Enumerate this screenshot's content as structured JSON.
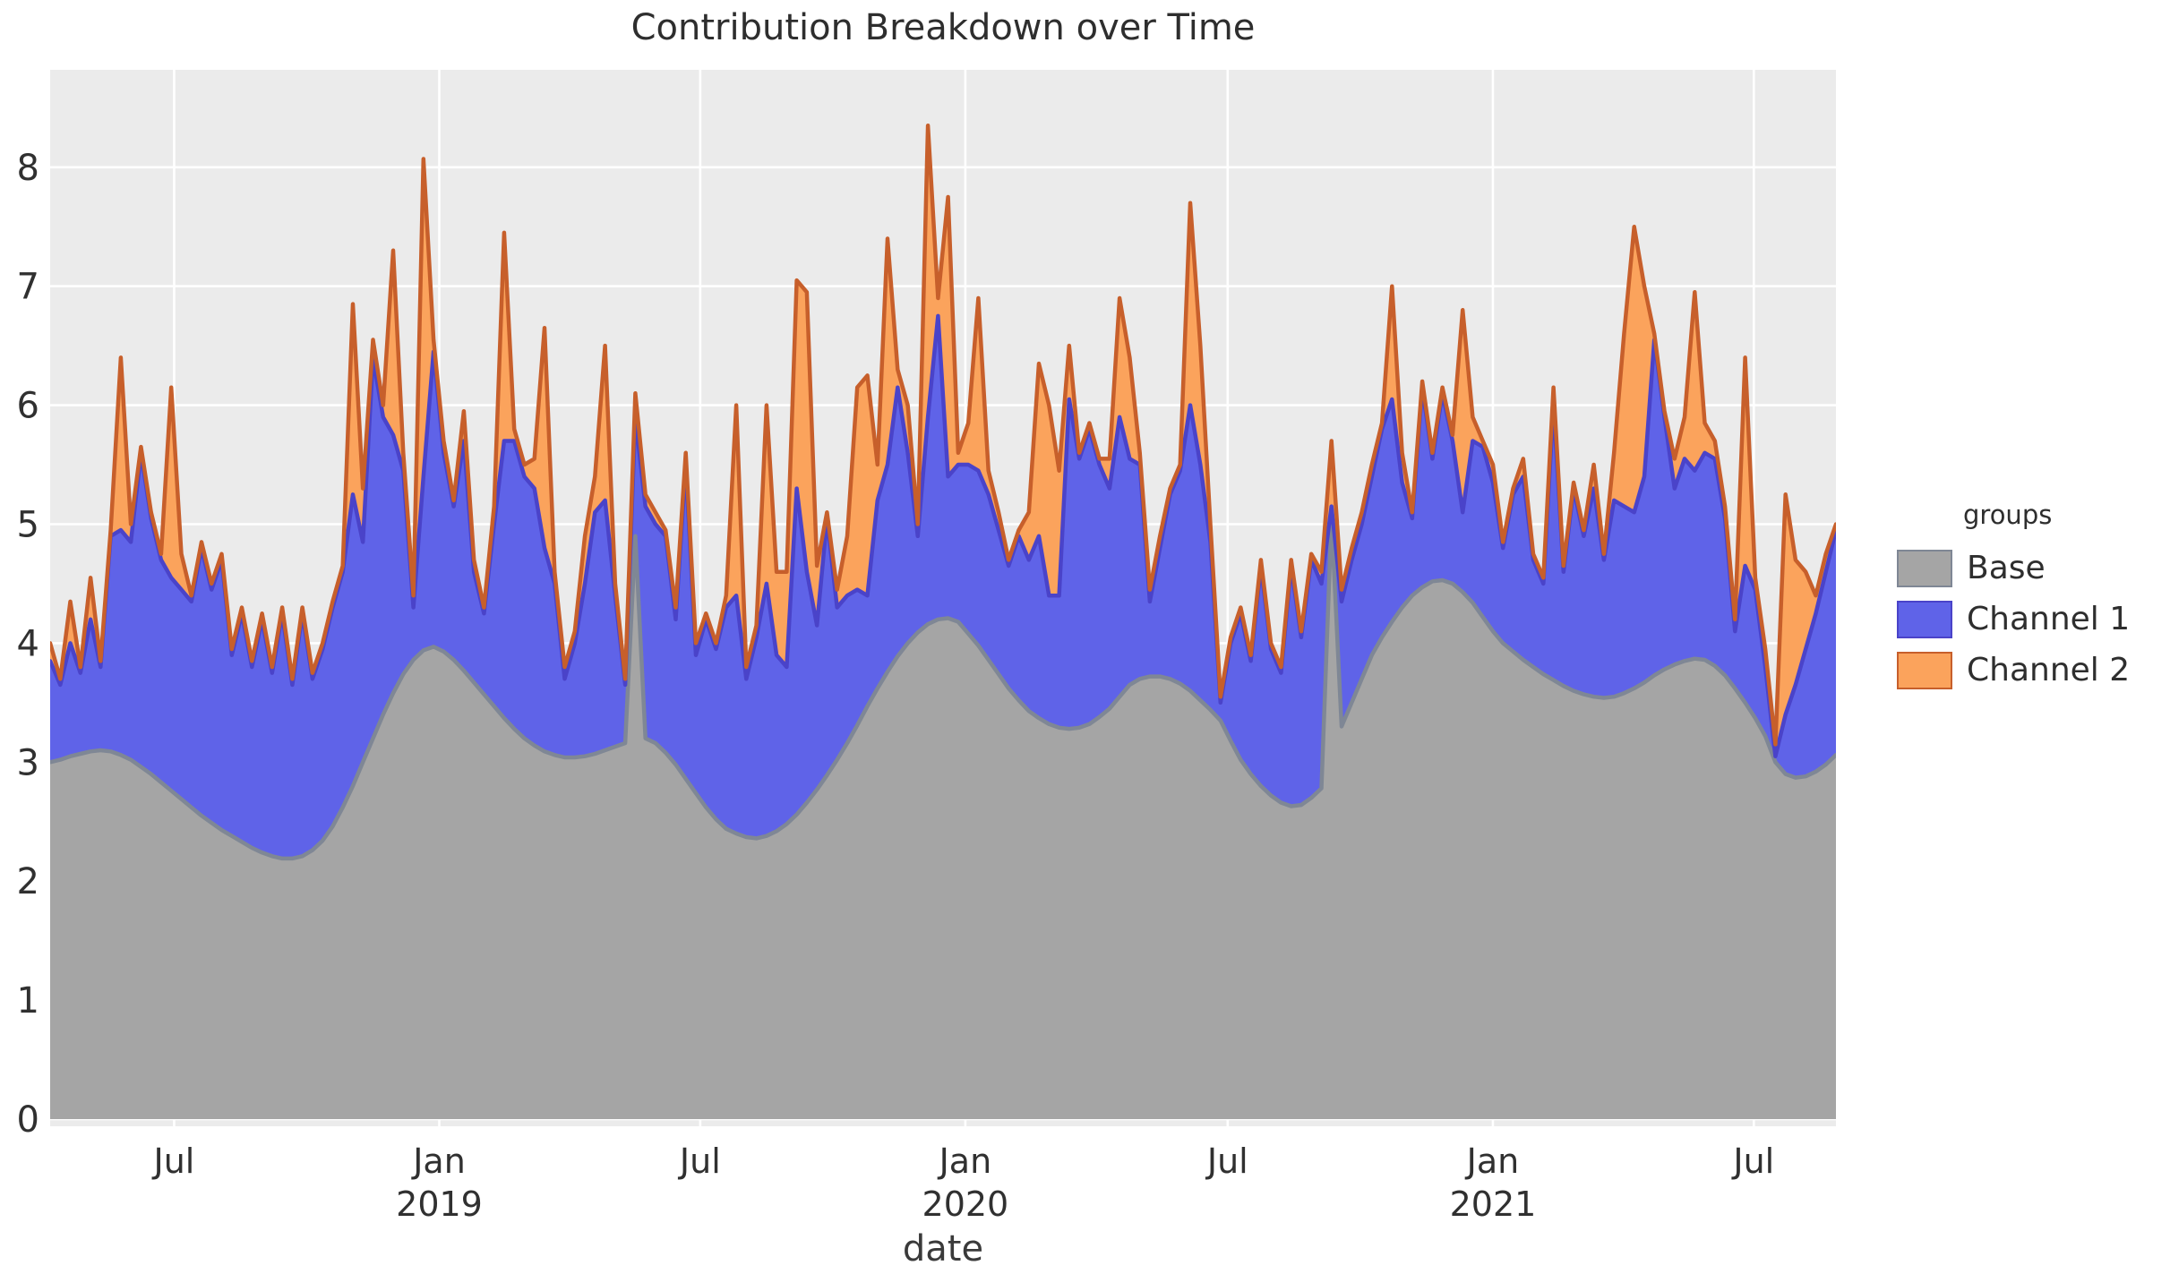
{
  "page": {
    "title": "Contribution Breakdown over Time"
  },
  "axes": {
    "x_title": "date",
    "y_ticks": [
      0,
      1,
      2,
      3,
      4,
      5,
      6,
      7,
      8
    ],
    "x_ticks": [
      {
        "label": "Jul",
        "year": "",
        "week": 12.29
      },
      {
        "label": "Jan",
        "year": "2019",
        "week": 38.57
      },
      {
        "label": "Jul",
        "year": "",
        "week": 64.43
      },
      {
        "label": "Jan",
        "year": "2020",
        "week": 90.71
      },
      {
        "label": "Jul",
        "year": "",
        "week": 116.71
      },
      {
        "label": "Jan",
        "year": "2021",
        "week": 143.0
      },
      {
        "label": "Jul",
        "year": "",
        "week": 168.86
      }
    ]
  },
  "legend": {
    "title": "groups",
    "items": [
      {
        "label": "Base",
        "fill": "#a5a5a5",
        "stroke": "#7f8795"
      },
      {
        "label": "Channel 1",
        "fill": "#5f63e8",
        "stroke": "#4a43c9"
      },
      {
        "label": "Channel 2",
        "fill": "#fba35c",
        "stroke": "#c75f2b"
      }
    ]
  },
  "colors": {
    "panel_background": "#ebebeb",
    "grid": "#ffffff",
    "text": "#303030"
  },
  "chart_data": {
    "type": "area",
    "stacked": true,
    "title": "Contribution Breakdown over Time",
    "xlabel": "date",
    "ylabel": "",
    "ylim": [
      0,
      8.9
    ],
    "x_start_date": "2018-04-06",
    "x_interval_days": 7,
    "n_points": 178,
    "legend_position": "right",
    "grid": true,
    "series": [
      {
        "name": "Base",
        "fill": "#a5a5a5",
        "stroke": "#7f8795",
        "values": [
          3.0,
          3.02,
          3.05,
          3.07,
          3.09,
          3.1,
          3.09,
          3.06,
          3.02,
          2.96,
          2.9,
          2.83,
          2.76,
          2.69,
          2.62,
          2.55,
          2.49,
          2.43,
          2.38,
          2.33,
          2.28,
          2.24,
          2.21,
          2.19,
          2.19,
          2.21,
          2.26,
          2.34,
          2.46,
          2.62,
          2.8,
          3.0,
          3.2,
          3.4,
          3.58,
          3.74,
          3.86,
          3.94,
          3.97,
          3.93,
          3.86,
          3.77,
          3.67,
          3.57,
          3.47,
          3.37,
          3.28,
          3.2,
          3.14,
          3.09,
          3.06,
          3.04,
          3.04,
          3.05,
          3.07,
          3.1,
          3.13,
          3.16,
          4.9,
          3.2,
          3.16,
          3.08,
          2.98,
          2.86,
          2.74,
          2.62,
          2.52,
          2.44,
          2.4,
          2.37,
          2.36,
          2.38,
          2.42,
          2.48,
          2.56,
          2.66,
          2.77,
          2.89,
          3.02,
          3.16,
          3.31,
          3.47,
          3.62,
          3.76,
          3.89,
          4.0,
          4.09,
          4.16,
          4.2,
          4.21,
          4.18,
          4.08,
          3.98,
          3.86,
          3.74,
          3.62,
          3.52,
          3.43,
          3.37,
          3.32,
          3.29,
          3.28,
          3.29,
          3.32,
          3.38,
          3.45,
          3.55,
          3.65,
          3.7,
          3.72,
          3.72,
          3.7,
          3.66,
          3.6,
          3.52,
          3.44,
          3.35,
          3.18,
          3.02,
          2.9,
          2.8,
          2.72,
          2.66,
          2.63,
          2.64,
          2.7,
          2.78,
          5.05,
          3.3,
          3.5,
          3.7,
          3.9,
          4.05,
          4.18,
          4.3,
          4.4,
          4.47,
          4.52,
          4.53,
          4.5,
          4.43,
          4.34,
          4.22,
          4.1,
          4.0,
          3.93,
          3.86,
          3.8,
          3.74,
          3.69,
          3.64,
          3.6,
          3.57,
          3.55,
          3.54,
          3.55,
          3.58,
          3.62,
          3.67,
          3.73,
          3.78,
          3.82,
          3.85,
          3.87,
          3.86,
          3.81,
          3.73,
          3.62,
          3.5,
          3.37,
          3.22,
          3.0,
          2.9,
          2.87,
          2.88,
          2.92,
          2.98,
          3.06
        ]
      },
      {
        "name": "Channel 1",
        "fill": "#5f63e8",
        "stroke": "#4a43c9",
        "values": [
          0.85,
          0.63,
          0.95,
          0.68,
          1.11,
          0.7,
          1.81,
          1.89,
          1.83,
          2.64,
          2.15,
          1.87,
          1.79,
          1.76,
          1.73,
          2.25,
          1.96,
          2.27,
          1.52,
          1.92,
          1.52,
          1.96,
          1.54,
          2.06,
          1.46,
          2.04,
          1.44,
          1.61,
          1.84,
          1.98,
          2.45,
          1.85,
          3.2,
          2.5,
          2.17,
          1.71,
          0.44,
          1.46,
          2.48,
          1.67,
          1.29,
          1.93,
          0.93,
          0.68,
          1.53,
          2.33,
          2.42,
          2.2,
          2.16,
          1.71,
          1.44,
          0.66,
          0.96,
          1.45,
          2.03,
          2.1,
          1.27,
          0.49,
          1.0,
          1.95,
          1.84,
          1.82,
          1.22,
          2.64,
          1.16,
          1.58,
          1.43,
          1.86,
          2.0,
          1.33,
          1.69,
          2.12,
          1.48,
          1.32,
          2.74,
          1.94,
          1.38,
          2.16,
          1.28,
          1.24,
          1.14,
          0.93,
          1.58,
          1.74,
          2.26,
          1.6,
          0.81,
          1.74,
          2.55,
          1.19,
          1.32,
          1.42,
          1.47,
          1.39,
          1.21,
          1.03,
          1.38,
          1.27,
          1.53,
          1.08,
          1.11,
          2.77,
          2.26,
          2.48,
          2.12,
          1.85,
          2.35,
          1.9,
          1.8,
          0.63,
          1.08,
          1.55,
          1.79,
          2.4,
          1.98,
          1.41,
          0.15,
          0.82,
          1.23,
          0.95,
          1.85,
          1.23,
          1.09,
          2.02,
          1.41,
          2.0,
          1.72,
          0.1,
          1.05,
          1.2,
          1.3,
          1.5,
          1.75,
          1.87,
          1.05,
          0.65,
          1.68,
          1.03,
          1.57,
          1.2,
          0.67,
          1.36,
          1.43,
          1.25,
          0.8,
          1.32,
          1.54,
          0.9,
          0.76,
          2.31,
          0.96,
          1.7,
          1.33,
          1.75,
          1.16,
          1.65,
          1.57,
          1.48,
          1.73,
          2.82,
          2.12,
          1.48,
          1.7,
          1.58,
          1.74,
          1.74,
          1.32,
          0.48,
          1.15,
          1.08,
          0.58,
          0.05,
          0.5,
          0.78,
          1.07,
          1.33,
          1.62,
          1.89
        ]
      },
      {
        "name": "Channel 2",
        "fill": "#fba35c",
        "stroke": "#c75f2b",
        "values": [
          0.15,
          0.05,
          0.35,
          0.05,
          0.35,
          0.05,
          0.05,
          1.45,
          0.15,
          0.05,
          0.05,
          0.05,
          1.6,
          0.3,
          0.05,
          0.05,
          0.05,
          0.05,
          0.05,
          0.05,
          0.05,
          0.05,
          0.05,
          0.05,
          0.05,
          0.05,
          0.05,
          0.05,
          0.05,
          0.05,
          1.6,
          0.45,
          0.15,
          0.1,
          1.55,
          0.15,
          0.1,
          2.67,
          0.1,
          0.1,
          0.05,
          0.25,
          0.1,
          0.05,
          0.15,
          1.75,
          0.1,
          0.1,
          0.25,
          1.85,
          0.1,
          0.1,
          0.1,
          0.4,
          0.3,
          1.3,
          0.1,
          0.05,
          0.2,
          0.1,
          0.1,
          0.05,
          0.1,
          0.1,
          0.1,
          0.05,
          0.05,
          0.1,
          1.6,
          0.1,
          0.1,
          1.5,
          0.7,
          0.8,
          1.75,
          2.35,
          0.5,
          0.05,
          0.15,
          0.5,
          1.7,
          1.85,
          0.3,
          1.9,
          0.15,
          0.4,
          0.1,
          2.45,
          0.15,
          2.35,
          0.1,
          0.35,
          1.45,
          0.2,
          0.15,
          0.05,
          0.05,
          0.4,
          1.45,
          1.6,
          1.05,
          0.45,
          0.05,
          0.05,
          0.05,
          0.25,
          1.0,
          0.85,
          0.1,
          0.1,
          0.1,
          0.05,
          0.05,
          1.7,
          1.0,
          0.15,
          0.05,
          0.05,
          0.05,
          0.05,
          0.05,
          0.05,
          0.05,
          0.05,
          0.05,
          0.05,
          0.1,
          0.55,
          0.1,
          0.1,
          0.1,
          0.1,
          0.05,
          0.95,
          0.25,
          0.05,
          0.05,
          0.05,
          0.05,
          0.05,
          1.7,
          0.2,
          0.05,
          0.15,
          0.05,
          0.05,
          0.15,
          0.05,
          0.05,
          0.15,
          0.05,
          0.05,
          0.05,
          0.2,
          0.05,
          0.4,
          1.45,
          2.4,
          1.6,
          0.05,
          0.05,
          0.25,
          0.35,
          1.5,
          0.25,
          0.15,
          0.1,
          0.1,
          1.75,
          0.1,
          0.15,
          0.1,
          1.85,
          1.05,
          0.65,
          0.15,
          0.15,
          0.05
        ]
      }
    ]
  }
}
